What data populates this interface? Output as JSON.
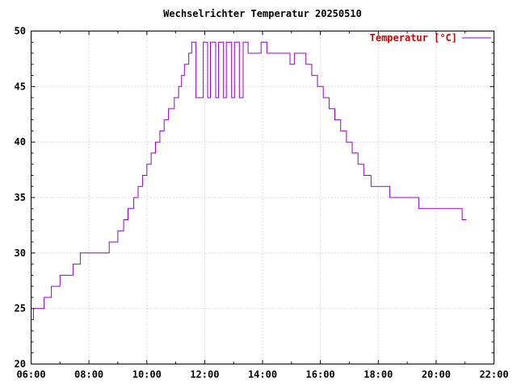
{
  "page": {
    "background": "#ffffff"
  },
  "chart_data": {
    "type": "line",
    "title": "Wechselrichter Temperatur 20250510",
    "xlabel": "",
    "ylabel": "",
    "xlim": [
      6,
      22
    ],
    "ylim": [
      20,
      50
    ],
    "x_major_step_hours": 2,
    "x_ticks": [
      "06:00",
      "08:00",
      "10:00",
      "12:00",
      "14:00",
      "16:00",
      "18:00",
      "20:00",
      "22:00"
    ],
    "y_ticks": [
      20,
      25,
      30,
      35,
      40,
      45,
      50
    ],
    "grid": true,
    "legend_position": "top-right",
    "colors": {
      "line": "#9400d3",
      "legend_text": "#cc0000",
      "grid": "#b4b4b4",
      "axis": "#000000",
      "background": "#ffffff"
    },
    "series": [
      {
        "name": "Temperatur [°C]",
        "color": "#9400d3",
        "mode": "step-after",
        "points": [
          [
            6.0,
            24
          ],
          [
            6.08,
            25
          ],
          [
            6.45,
            26
          ],
          [
            6.7,
            27
          ],
          [
            7.0,
            28
          ],
          [
            7.45,
            29
          ],
          [
            7.7,
            30
          ],
          [
            8.7,
            31
          ],
          [
            9.0,
            32
          ],
          [
            9.2,
            33
          ],
          [
            9.35,
            34
          ],
          [
            9.55,
            35
          ],
          [
            9.7,
            36
          ],
          [
            9.85,
            37
          ],
          [
            10.0,
            38
          ],
          [
            10.15,
            39
          ],
          [
            10.3,
            40
          ],
          [
            10.45,
            41
          ],
          [
            10.6,
            42
          ],
          [
            10.75,
            43
          ],
          [
            10.95,
            44
          ],
          [
            11.1,
            45
          ],
          [
            11.2,
            46
          ],
          [
            11.3,
            47
          ],
          [
            11.45,
            48
          ],
          [
            11.55,
            49
          ],
          [
            11.7,
            44
          ],
          [
            11.95,
            49
          ],
          [
            12.1,
            44
          ],
          [
            12.2,
            49
          ],
          [
            12.38,
            44
          ],
          [
            12.48,
            49
          ],
          [
            12.65,
            44
          ],
          [
            12.75,
            49
          ],
          [
            12.93,
            44
          ],
          [
            13.03,
            49
          ],
          [
            13.2,
            44
          ],
          [
            13.33,
            49
          ],
          [
            13.5,
            48
          ],
          [
            13.95,
            49
          ],
          [
            14.15,
            48
          ],
          [
            14.95,
            47
          ],
          [
            15.1,
            48
          ],
          [
            15.5,
            47
          ],
          [
            15.7,
            46
          ],
          [
            15.9,
            45
          ],
          [
            16.1,
            44
          ],
          [
            16.3,
            43
          ],
          [
            16.5,
            42
          ],
          [
            16.7,
            41
          ],
          [
            16.9,
            40
          ],
          [
            17.1,
            39
          ],
          [
            17.3,
            38
          ],
          [
            17.5,
            37
          ],
          [
            17.75,
            36
          ],
          [
            18.4,
            35
          ],
          [
            19.4,
            34
          ],
          [
            20.9,
            33
          ],
          [
            21.05,
            33
          ]
        ]
      }
    ]
  }
}
